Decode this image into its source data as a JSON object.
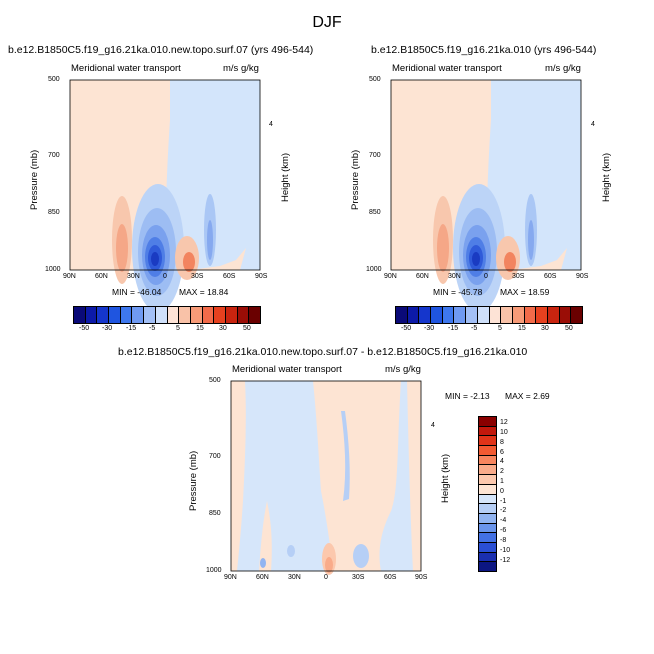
{
  "figure_title": "DJF",
  "plots": [
    {
      "title": "b.e12.B1850C5.f19_g16.21ka.010.new.topo.surf.07 (yrs 496-544)",
      "left_label": "Meridional water transport",
      "right_label": "m/s g/kg",
      "min_text": "MIN = -46.04",
      "max_text": "MAX =  18.84"
    },
    {
      "title": "b.e12.B1850C5.f19_g16.21ka.010 (yrs 496-544)",
      "left_label": "Meridional water transport",
      "right_label": "m/s g/kg",
      "min_text": "MIN = -45.78",
      "max_text": "MAX =  18.59"
    },
    {
      "title": "b.e12.B1850C5.f19_g16.21ka.010.new.topo.surf.07 - b.e12.B1850C5.f19_g16.21ka.010",
      "left_label": "Meridional water transport",
      "right_label": "m/s g/kg",
      "min_text": "MIN = -2.13",
      "max_text": "MAX =  2.69"
    }
  ],
  "axes": {
    "ylabel": "Pressure (mb)",
    "y2label": "Height (km)",
    "y_ticks": [
      "500",
      "700",
      "850",
      "1000"
    ],
    "y2_ticks": [
      "4"
    ],
    "x_ticks": [
      "90N",
      "60N",
      "30N",
      "0",
      "30S",
      "60S",
      "90S"
    ]
  },
  "colorbar_top": {
    "labels": [
      "-50",
      "-30",
      "-15",
      "-5",
      "5",
      "15",
      "30",
      "50"
    ],
    "colors": [
      "#0a0a78",
      "#0c1aa8",
      "#1536cc",
      "#1f55e0",
      "#3e78ee",
      "#6f9af2",
      "#a3c0f6",
      "#cfe0fa",
      "#fde3d6",
      "#f9c2a8",
      "#f79b78",
      "#f26b4a",
      "#e6411f",
      "#c8240f",
      "#9a0d06",
      "#6a0000"
    ]
  },
  "colorbar_diff": {
    "labels": [
      "12",
      "10",
      "8",
      "6",
      "4",
      "2",
      "1",
      "0",
      "-1",
      "-2",
      "-4",
      "-6",
      "-8",
      "-10",
      "-12"
    ],
    "colors": [
      "#8a0000",
      "#c2180c",
      "#e03419",
      "#f25a32",
      "#f7855e",
      "#f9ab8a",
      "#fcc8ad",
      "#fde4d3",
      "#d6e6fa",
      "#b6cff6",
      "#91b4f1",
      "#6a95ec",
      "#4371e4",
      "#2a4fd4",
      "#1a2fb0",
      "#0c1682"
    ]
  },
  "chart_data": [
    {
      "type": "heatmap",
      "title": "b.e12.B1850C5.f19_g16.21ka.010.new.topo.surf.07 (yrs 496-544)",
      "xlabel": "",
      "ylabel": "Pressure (mb)",
      "x_ticks": [
        "90N",
        "60N",
        "30N",
        "0",
        "30S",
        "60S",
        "90S"
      ],
      "y_ticks": [
        500,
        700,
        850,
        1000
      ],
      "ylim": [
        1000,
        500
      ],
      "min": -46.04,
      "max": 18.84,
      "contour_levels": [
        -50,
        -45,
        -40,
        -35,
        -30,
        -25,
        -20,
        -15,
        -10,
        -5,
        0,
        5,
        10,
        15,
        20,
        25,
        30,
        35,
        40,
        45,
        50
      ]
    },
    {
      "type": "heatmap",
      "title": "b.e12.B1850C5.f19_g16.21ka.010 (yrs 496-544)",
      "xlabel": "",
      "ylabel": "Pressure (mb)",
      "x_ticks": [
        "90N",
        "60N",
        "30N",
        "0",
        "30S",
        "60S",
        "90S"
      ],
      "y_ticks": [
        500,
        700,
        850,
        1000
      ],
      "ylim": [
        1000,
        500
      ],
      "min": -45.78,
      "max": 18.59,
      "contour_levels": [
        -50,
        -45,
        -40,
        -35,
        -30,
        -25,
        -20,
        -15,
        -10,
        -5,
        0,
        5,
        10,
        15,
        20,
        25,
        30,
        35,
        40,
        45,
        50
      ]
    },
    {
      "type": "heatmap",
      "title": "b.e12.B1850C5.f19_g16.21ka.010.new.topo.surf.07 - b.e12.B1850C5.f19_g16.21ka.010",
      "xlabel": "",
      "ylabel": "Pressure (mb)",
      "x_ticks": [
        "90N",
        "60N",
        "30N",
        "0",
        "30S",
        "60S",
        "90S"
      ],
      "y_ticks": [
        500,
        700,
        850,
        1000
      ],
      "ylim": [
        1000,
        500
      ],
      "min": -2.13,
      "max": 2.69,
      "contour_levels": [
        -12,
        -10,
        -8,
        -6,
        -4,
        -2,
        -1,
        0,
        1,
        2,
        4,
        6,
        8,
        10,
        12
      ]
    }
  ]
}
